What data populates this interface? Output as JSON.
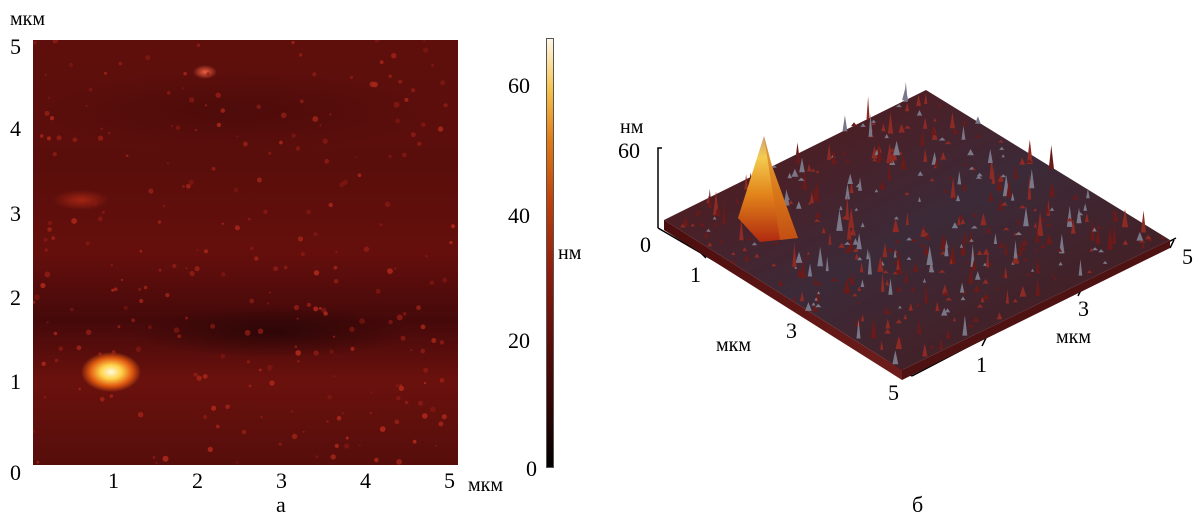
{
  "panel_a": {
    "y_unit": "мкм",
    "y_ticks": [
      "5",
      "4",
      "3",
      "2",
      "1",
      "0"
    ],
    "x_ticks": [
      "1",
      "2",
      "3",
      "4",
      "5"
    ],
    "x_unit": "мкм",
    "caption": "а",
    "colorbar": {
      "ticks": [
        "60",
        "40",
        "20",
        "0"
      ],
      "unit": "нм"
    }
  },
  "panel_b": {
    "z_unit": "нм",
    "z_ticks": [
      "60",
      "0"
    ],
    "left_axis_ticks": [
      "1",
      "3",
      "5"
    ],
    "left_axis_unit": "мкм",
    "right_axis_ticks": [
      "1",
      "3",
      "5"
    ],
    "right_axis_unit": "мкм",
    "caption": "б"
  },
  "colors": {
    "surface_base": "#5a0e0b",
    "hot_spot": "#ffd24a",
    "background": "#ffffff"
  }
}
